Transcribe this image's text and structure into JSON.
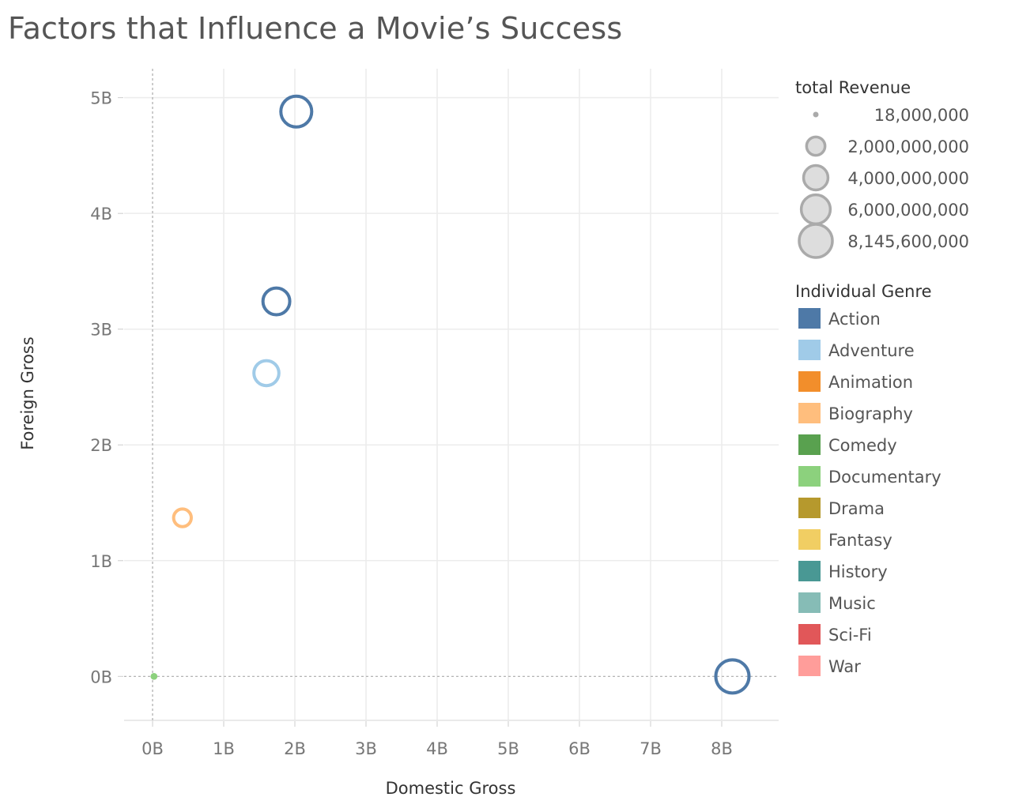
{
  "title": "Factors that Influence a Movie’s Success",
  "chart_data": {
    "type": "scatter",
    "title": "Factors that Influence a Movie’s Success",
    "xlabel": "Domestic Gross",
    "ylabel": "Foreign Gross",
    "xlim": [
      -0.4,
      8.8
    ],
    "ylim": [
      -0.38,
      5.25
    ],
    "x_ticks": [
      0,
      1,
      2,
      3,
      4,
      5,
      6,
      7,
      8
    ],
    "y_ticks": [
      0,
      1,
      2,
      3,
      4,
      5
    ],
    "x_tick_labels": [
      "0B",
      "1B",
      "2B",
      "3B",
      "4B",
      "5B",
      "6B",
      "7B",
      "8B"
    ],
    "y_tick_labels": [
      "0B",
      "1B",
      "2B",
      "3B",
      "4B",
      "5B"
    ],
    "grid": true,
    "size_legend": {
      "title": "total Revenue",
      "entries": [
        {
          "value": 18000000,
          "label": "18,000,000"
        },
        {
          "value": 2000000000,
          "label": "2,000,000,000"
        },
        {
          "value": 4000000000,
          "label": "4,000,000,000"
        },
        {
          "value": 6000000000,
          "label": "6,000,000,000"
        },
        {
          "value": 8145600000,
          "label": "8,145,600,000"
        }
      ]
    },
    "color_legend": {
      "title": "Individual Genre",
      "entries": [
        {
          "name": "Action",
          "color": "#4e79a7"
        },
        {
          "name": "Adventure",
          "color": "#a0cbe8"
        },
        {
          "name": "Animation",
          "color": "#f28e2b"
        },
        {
          "name": "Biography",
          "color": "#ffbe7d"
        },
        {
          "name": "Comedy",
          "color": "#59a14f"
        },
        {
          "name": "Documentary",
          "color": "#8cd17d"
        },
        {
          "name": "Drama",
          "color": "#b6992d"
        },
        {
          "name": "Fantasy",
          "color": "#f1ce63"
        },
        {
          "name": "History",
          "color": "#499894"
        },
        {
          "name": "Music",
          "color": "#86bcb6"
        },
        {
          "name": "Sci-Fi",
          "color": "#e15759"
        },
        {
          "name": "War",
          "color": "#ff9d9a"
        }
      ]
    },
    "points": [
      {
        "genre": "Action",
        "x": 2.02,
        "y": 4.88,
        "revenue": 6900000000
      },
      {
        "genre": "Action",
        "x": 1.74,
        "y": 3.24,
        "revenue": 4980000000
      },
      {
        "genre": "Adventure",
        "x": 1.6,
        "y": 2.62,
        "revenue": 4220000000
      },
      {
        "genre": "Biography",
        "x": 0.42,
        "y": 1.37,
        "revenue": 1790000000
      },
      {
        "genre": "Documentary",
        "x": 0.02,
        "y": 0.0,
        "revenue": 18000000
      },
      {
        "genre": "Action",
        "x": 8.15,
        "y": 0.0,
        "revenue": 8145600000
      }
    ]
  }
}
